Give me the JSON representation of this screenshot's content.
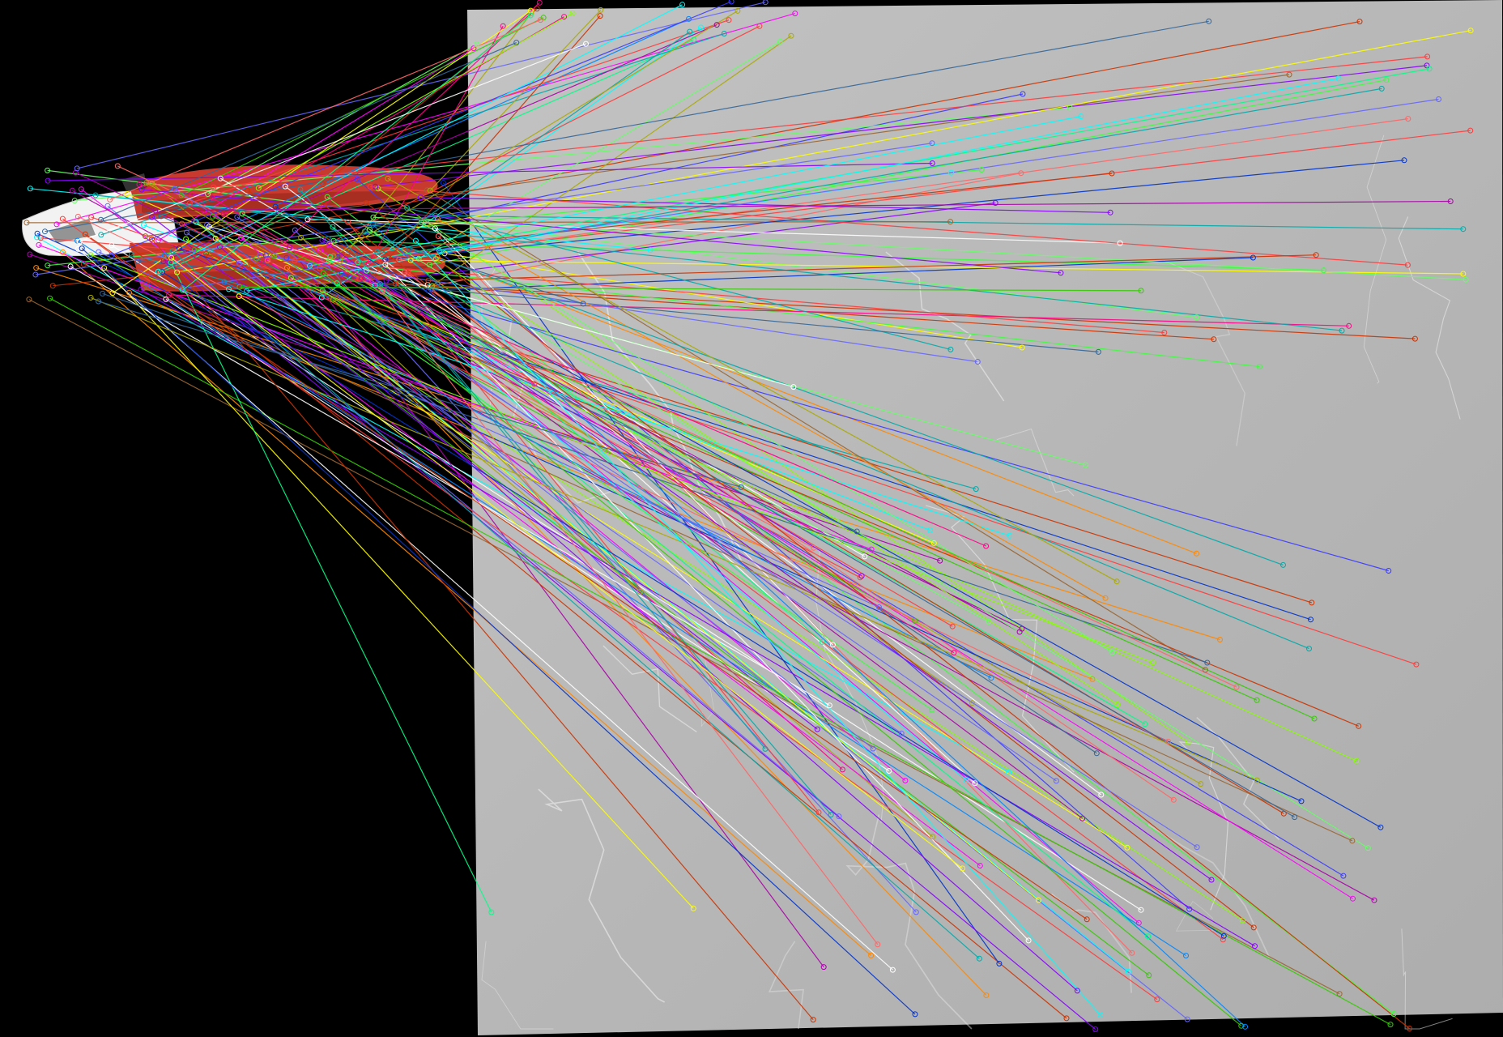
{
  "scene": {
    "description_free": true,
    "background_color": "#000000",
    "marble_color": "#b9b9b9",
    "marble_vein_color": "#e6e6e6",
    "object_colors": {
      "body_white": "#f2f2f2",
      "fin_red": "#c93a2e",
      "fin_red_dark": "#8e2419"
    },
    "match_line_colors": [
      "#ff3b3b",
      "#3bff3b",
      "#3b3bff",
      "#ffff00",
      "#ff00ff",
      "#00ffff",
      "#ff8800",
      "#88ff00",
      "#0088ff",
      "#ff0088",
      "#8800ff",
      "#00ff88",
      "#ffffff",
      "#aaaa00",
      "#00aaaa",
      "#aa00aa",
      "#ff6666",
      "#66ff66",
      "#6666ff",
      "#cc3300",
      "#33cc00",
      "#0033cc",
      "#996633",
      "#336699"
    ]
  }
}
